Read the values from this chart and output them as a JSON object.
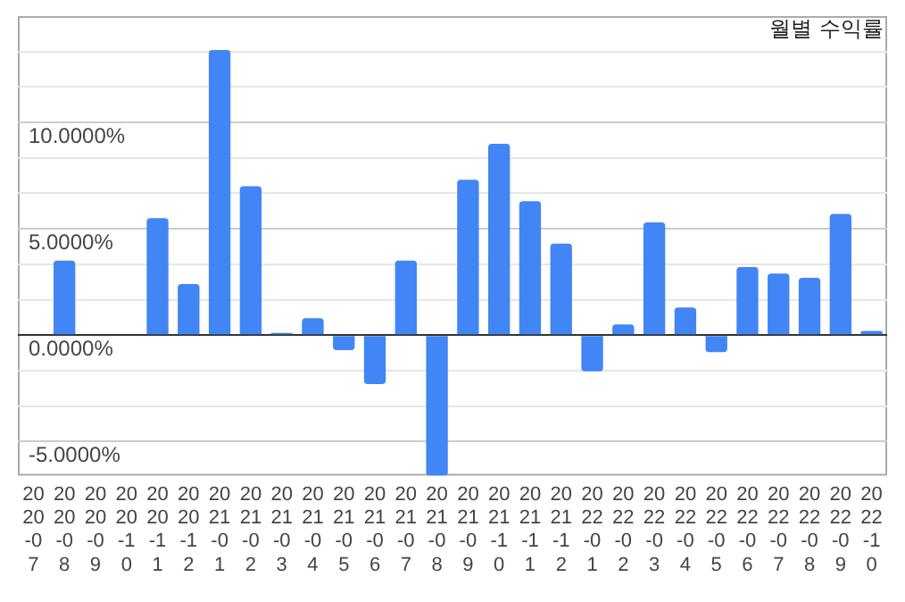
{
  "chart_data": {
    "type": "bar",
    "title": "월별 수익률",
    "categories": [
      "2020-07",
      "2020-08",
      "2020-09",
      "2020-10",
      "2020-11",
      "2020-12",
      "2021-01",
      "2021-02",
      "2021-03",
      "2021-04",
      "2021-05",
      "2021-06",
      "2021-07",
      "2021-08",
      "2021-09",
      "2021-10",
      "2021-11",
      "2021-12",
      "2022-01",
      "2022-02",
      "2022-03",
      "2022-04",
      "2022-05",
      "2022-06",
      "2022-07",
      "2022-08",
      "2022-09",
      "2022-10"
    ],
    "values": [
      0,
      3.5,
      null,
      0,
      5.5,
      2.4,
      13.4,
      7,
      0.1,
      0.8,
      -0.7,
      -2.3,
      3.5,
      -6.6,
      7.3,
      9,
      6.3,
      4.3,
      -1.7,
      0.5,
      5.3,
      1.3,
      -0.8,
      3.2,
      2.9,
      2.7,
      5.7,
      0.2
    ],
    "color": "#4285f4",
    "ylim": [
      -6.6,
      15
    ],
    "yticks": [
      {
        "value": -5,
        "label": "-5.0000%"
      },
      {
        "value": -3.3333,
        "label": null
      },
      {
        "value": -1.6667,
        "label": null
      },
      {
        "value": 0,
        "label": "0.0000%"
      },
      {
        "value": 1.6667,
        "label": null
      },
      {
        "value": 3.3333,
        "label": null
      },
      {
        "value": 5,
        "label": "5.0000%"
      },
      {
        "value": 6.6667,
        "label": null
      },
      {
        "value": 8.3333,
        "label": null
      },
      {
        "value": 10,
        "label": "10.0000%"
      },
      {
        "value": 11.6667,
        "label": null
      },
      {
        "value": 13.3333,
        "label": null
      }
    ],
    "grid": "y"
  }
}
